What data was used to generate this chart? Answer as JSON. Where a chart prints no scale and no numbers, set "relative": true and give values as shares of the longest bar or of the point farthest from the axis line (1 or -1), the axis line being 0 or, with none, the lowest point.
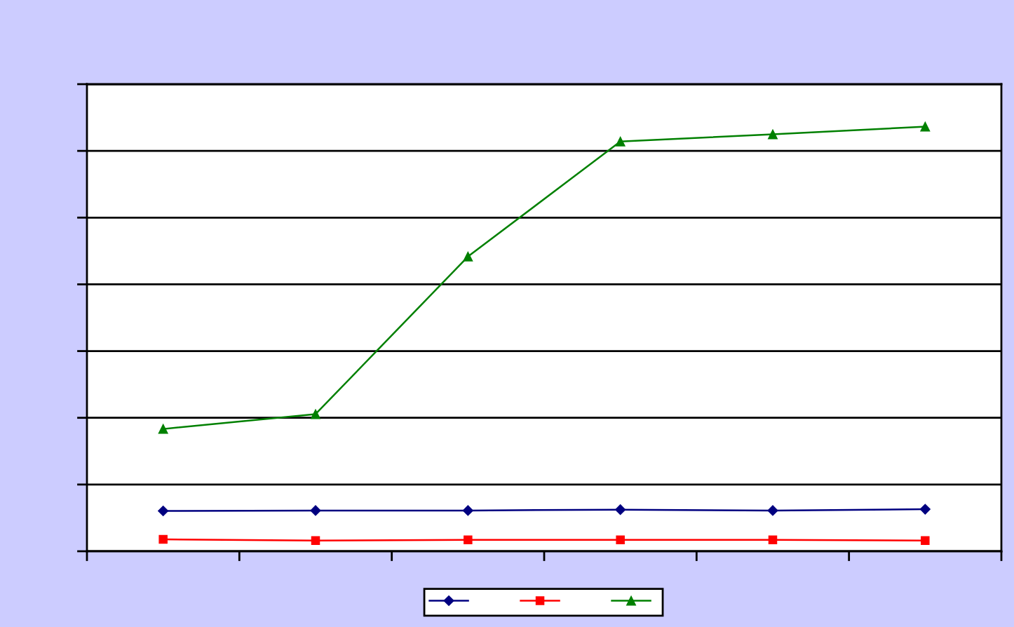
{
  "chart_data": {
    "type": "line",
    "relative": true,
    "categories": [
      null,
      null,
      null,
      null,
      null,
      null
    ],
    "series": [
      {
        "color": "#000080",
        "marker": "diamond",
        "values": [
          0.095,
          0.096,
          0.096,
          0.098,
          0.096,
          0.099
        ]
      },
      {
        "color": "#ff0000",
        "marker": "square",
        "values": [
          0.028,
          0.025,
          0.027,
          0.027,
          0.027,
          0.025
        ]
      },
      {
        "color": "#008000",
        "marker": "triangle",
        "values": [
          0.288,
          0.323,
          0.694,
          0.965,
          0.982,
          1
        ]
      }
    ],
    "line_style": "solid",
    "grid": "y",
    "tick_labels": false
  }
}
